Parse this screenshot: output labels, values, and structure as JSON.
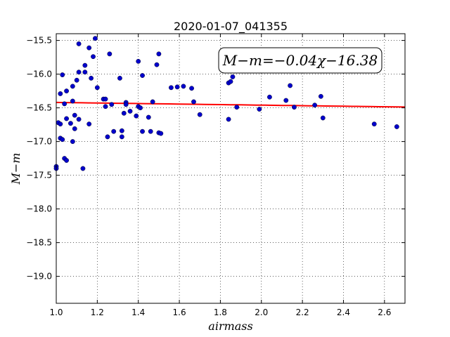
{
  "chart_data": {
    "type": "scatter",
    "title": "2020-01-07_041355",
    "xlabel": "airmass",
    "ylabel": "M−m",
    "xlim": [
      1.0,
      2.7
    ],
    "ylim": [
      -15.4,
      -19.4
    ],
    "y_inverted": true,
    "x_ticks": [
      1.0,
      1.2,
      1.4,
      1.6,
      1.8,
      2.0,
      2.2,
      2.4,
      2.6
    ],
    "x_tick_labels": [
      "1.0",
      "1.2",
      "1.4",
      "1.6",
      "1.8",
      "2.0",
      "2.2",
      "2.4",
      "2.6"
    ],
    "y_ticks": [
      -15.5,
      -16.0,
      -16.5,
      -17.0,
      -17.5,
      -18.0,
      -18.5,
      -19.0
    ],
    "y_tick_labels": [
      "−15.5",
      "−16.0",
      "−16.5",
      "−17.0",
      "−17.5",
      "−18.0",
      "−18.5",
      "−19.0"
    ],
    "grid": true,
    "annotation": "M−m=−0.04χ−16.38",
    "fit": {
      "slope": -0.04,
      "intercept": -16.38,
      "color": "#ff0000"
    },
    "point_color": "#0000cc",
    "points": [
      {
        "x": 1.0,
        "y": -17.37
      },
      {
        "x": 1.0,
        "y": -17.4
      },
      {
        "x": 1.01,
        "y": -16.72
      },
      {
        "x": 1.02,
        "y": -16.74
      },
      {
        "x": 1.02,
        "y": -16.29
      },
      {
        "x": 1.02,
        "y": -16.95
      },
      {
        "x": 1.03,
        "y": -16.97
      },
      {
        "x": 1.03,
        "y": -16.01
      },
      {
        "x": 1.04,
        "y": -16.44
      },
      {
        "x": 1.04,
        "y": -17.25
      },
      {
        "x": 1.05,
        "y": -17.28
      },
      {
        "x": 1.05,
        "y": -16.25
      },
      {
        "x": 1.05,
        "y": -16.66
      },
      {
        "x": 1.07,
        "y": -16.73
      },
      {
        "x": 1.08,
        "y": -16.18
      },
      {
        "x": 1.08,
        "y": -17.0
      },
      {
        "x": 1.08,
        "y": -16.4
      },
      {
        "x": 1.09,
        "y": -16.61
      },
      {
        "x": 1.09,
        "y": -16.81
      },
      {
        "x": 1.1,
        "y": -16.09
      },
      {
        "x": 1.11,
        "y": -16.67
      },
      {
        "x": 1.11,
        "y": -15.55
      },
      {
        "x": 1.11,
        "y": -15.97
      },
      {
        "x": 1.13,
        "y": -17.4
      },
      {
        "x": 1.14,
        "y": -15.87
      },
      {
        "x": 1.14,
        "y": -15.97
      },
      {
        "x": 1.16,
        "y": -16.74
      },
      {
        "x": 1.16,
        "y": -15.61
      },
      {
        "x": 1.17,
        "y": -16.06
      },
      {
        "x": 1.18,
        "y": -15.74
      },
      {
        "x": 1.19,
        "y": -15.47
      },
      {
        "x": 1.2,
        "y": -16.2
      },
      {
        "x": 1.23,
        "y": -16.37
      },
      {
        "x": 1.24,
        "y": -16.48
      },
      {
        "x": 1.24,
        "y": -16.37
      },
      {
        "x": 1.25,
        "y": -16.93
      },
      {
        "x": 1.26,
        "y": -15.7
      },
      {
        "x": 1.27,
        "y": -16.45
      },
      {
        "x": 1.28,
        "y": -16.85
      },
      {
        "x": 1.31,
        "y": -16.06
      },
      {
        "x": 1.32,
        "y": -16.84
      },
      {
        "x": 1.32,
        "y": -16.93
      },
      {
        "x": 1.33,
        "y": -16.58
      },
      {
        "x": 1.34,
        "y": -16.42
      },
      {
        "x": 1.34,
        "y": -16.45
      },
      {
        "x": 1.36,
        "y": -16.55
      },
      {
        "x": 1.39,
        "y": -16.62
      },
      {
        "x": 1.4,
        "y": -15.81
      },
      {
        "x": 1.4,
        "y": -16.48
      },
      {
        "x": 1.41,
        "y": -16.5
      },
      {
        "x": 1.42,
        "y": -16.02
      },
      {
        "x": 1.42,
        "y": -16.85
      },
      {
        "x": 1.45,
        "y": -16.64
      },
      {
        "x": 1.46,
        "y": -16.85
      },
      {
        "x": 1.47,
        "y": -16.41
      },
      {
        "x": 1.49,
        "y": -15.86
      },
      {
        "x": 1.5,
        "y": -15.7
      },
      {
        "x": 1.5,
        "y": -16.87
      },
      {
        "x": 1.51,
        "y": -16.88
      },
      {
        "x": 1.56,
        "y": -16.2
      },
      {
        "x": 1.59,
        "y": -16.19
      },
      {
        "x": 1.62,
        "y": -16.18
      },
      {
        "x": 1.66,
        "y": -16.21
      },
      {
        "x": 1.67,
        "y": -16.41
      },
      {
        "x": 1.7,
        "y": -16.6
      },
      {
        "x": 1.84,
        "y": -16.13
      },
      {
        "x": 1.84,
        "y": -16.67
      },
      {
        "x": 1.85,
        "y": -16.11
      },
      {
        "x": 1.86,
        "y": -16.04
      },
      {
        "x": 1.88,
        "y": -16.49
      },
      {
        "x": 1.99,
        "y": -16.52
      },
      {
        "x": 2.04,
        "y": -16.34
      },
      {
        "x": 2.12,
        "y": -16.39
      },
      {
        "x": 2.14,
        "y": -16.17
      },
      {
        "x": 2.16,
        "y": -16.49
      },
      {
        "x": 2.26,
        "y": -16.46
      },
      {
        "x": 2.29,
        "y": -16.33
      },
      {
        "x": 2.3,
        "y": -16.65
      },
      {
        "x": 2.55,
        "y": -16.74
      },
      {
        "x": 2.66,
        "y": -16.78
      }
    ]
  }
}
